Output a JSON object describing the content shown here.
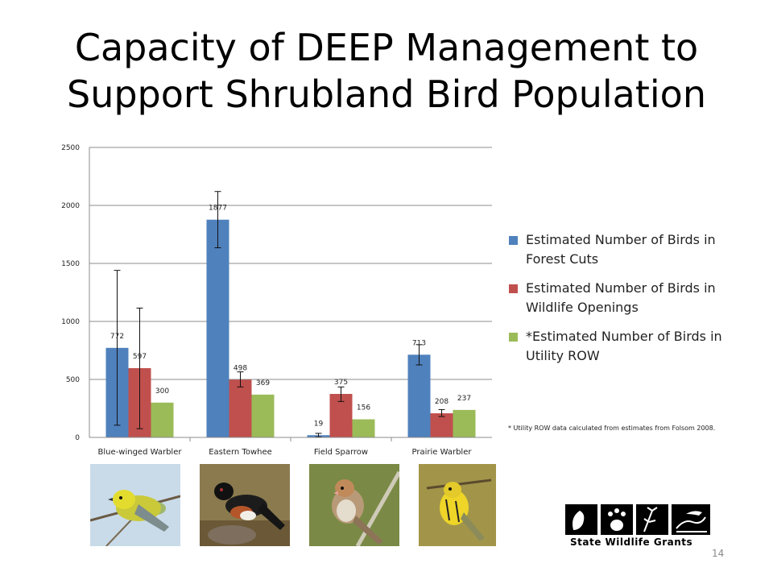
{
  "title_line1": "Capacity of DEEP Management to",
  "title_line2": "Support Shrubland Bird Population",
  "chart_data": {
    "type": "bar",
    "categories": [
      "Blue-winged Warbler",
      "Eastern Towhee",
      "Field Sparrow",
      "Prairie Warbler"
    ],
    "series": [
      {
        "name": "Estimated Number of Birds in Forest Cuts",
        "color": "#4f81bd",
        "values": [
          772,
          1877,
          19,
          713
        ],
        "labels": [
          "772",
          "1877",
          "19",
          "713"
        ],
        "error": [
          [
            105,
            1440
          ],
          [
            1635,
            2120
          ],
          [
            5,
            35
          ],
          [
            625,
            800
          ]
        ]
      },
      {
        "name": "Estimated Number of Birds in Wildlife Openings",
        "color": "#c0504d",
        "values": [
          597,
          498,
          375,
          208
        ],
        "labels": [
          "597",
          "498",
          "375",
          "208"
        ],
        "error": [
          [
            75,
            1115
          ],
          [
            435,
            565
          ],
          [
            310,
            435
          ],
          [
            180,
            240
          ]
        ]
      },
      {
        "name": "*Estimated Number of Birds in Utility ROW",
        "color": "#9bbb59",
        "values": [
          300,
          369,
          156,
          237
        ],
        "labels": [
          "300",
          "369",
          "156",
          "237"
        ],
        "error": null
      }
    ],
    "ylim": [
      0,
      2500
    ],
    "yticks": [
      "0",
      "500",
      "1000",
      "1500",
      "2000",
      "2500"
    ],
    "grid": true,
    "legend_position": "right"
  },
  "footnote": "* Utility ROW data calculated from estimates from Folsom 2008.",
  "logo_text": "State Wildlife Grants",
  "page_number": "14"
}
